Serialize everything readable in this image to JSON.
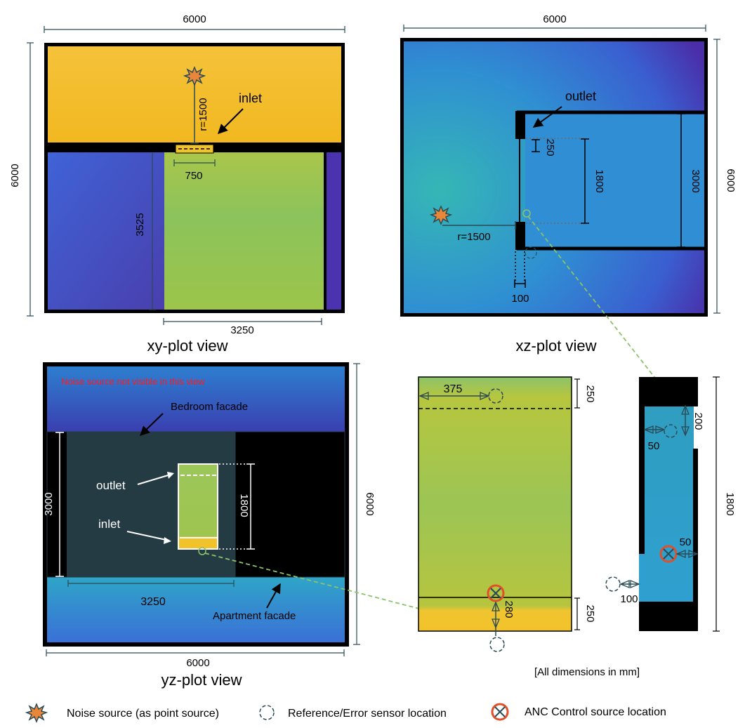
{
  "xy_plot": {
    "dim_top": "6000",
    "dim_left": "6000",
    "inlet_label": "inlet",
    "radius_label": "r=1500",
    "inlet_width": "750",
    "room_depth": "3525",
    "room_width": "3250",
    "caption": "xy-plot view"
  },
  "xz_plot": {
    "dim_top": "6000",
    "dim_right": "6000",
    "outlet_label": "outlet",
    "gap_250": "250",
    "height_1800": "1800",
    "height_3000": "3000",
    "radius_label": "r=1500",
    "thickness_100": "100",
    "caption": "xz-plot view"
  },
  "yz_plot": {
    "note": "Noise source not visible in this view",
    "bedroom_label": "Bedroom facade",
    "outlet_label": "outlet",
    "inlet_label": "inlet",
    "height_3000": "3000",
    "height_1800": "1800",
    "width_3250": "3250",
    "apartment_label": "Apartment facade",
    "dim_right": "6000",
    "dim_bottom": "6000",
    "caption": "yz-plot view"
  },
  "detail_front": {
    "dim_375": "375",
    "dim_250_top": "250",
    "dim_280": "280",
    "dim_250_bottom": "250"
  },
  "detail_side": {
    "dim_200": "200",
    "dim_50_top": "50",
    "dim_50_mid": "50",
    "dim_100": "100",
    "dim_1800": "1800"
  },
  "units_note": "[All dimensions in mm]",
  "legend": [
    {
      "icon": "starburst-icon",
      "label": "Noise source (as point source)"
    },
    {
      "icon": "dashed-circle-icon",
      "label": "Reference/Error sensor location"
    },
    {
      "icon": "circled-x-icon",
      "label": "ANC Control source location"
    }
  ],
  "colors": {
    "yellow": "#f0c030",
    "green": "#8cc36a",
    "teal": "#2e9fb8",
    "blue": "#3a6fd0",
    "purple": "#4b2ea8",
    "frame": "#000000",
    "facade": "#253b44",
    "annotation_red": "#ff1a1a",
    "anc_red": "#e0502a",
    "link_green": "#8cc36a"
  }
}
